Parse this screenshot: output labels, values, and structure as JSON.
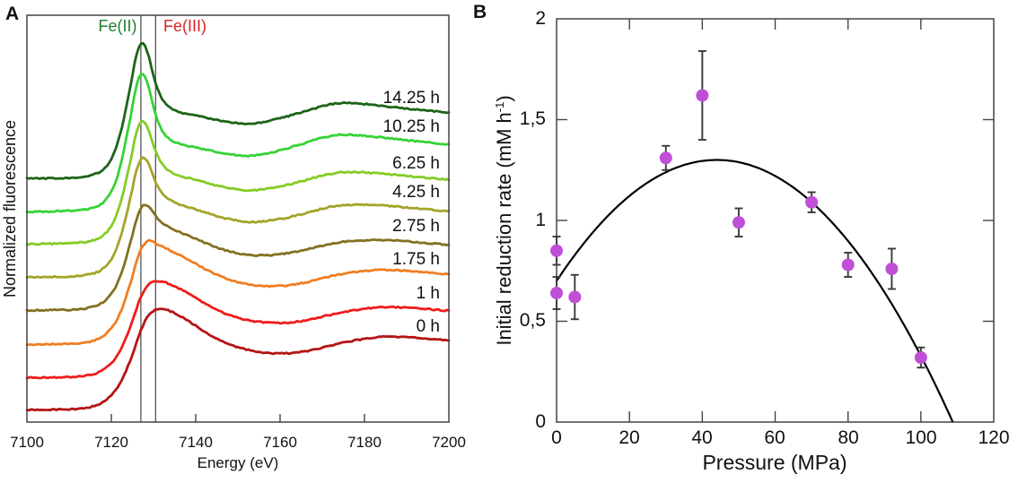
{
  "panels": {
    "a": {
      "label": "A"
    },
    "b": {
      "label": "B"
    }
  },
  "chart_data": [
    {
      "panel": "A",
      "type": "line",
      "xlabel": "Energy (eV)",
      "ylabel": "Normalized fluorescence",
      "xlim": [
        7100,
        7200
      ],
      "ylim": [
        0,
        4.54
      ],
      "grid": false,
      "x_ticks": [
        7100,
        7120,
        7140,
        7160,
        7180,
        7200
      ],
      "reference_lines": [
        {
          "label": "Fe(II)",
          "x": 7127.0,
          "label_color": "#1f7d2c",
          "line_color": "#5f5f5f"
        },
        {
          "label": "Fe(III)",
          "x": 7130.5,
          "label_color": "#d42424",
          "line_color": "#5f5f5f"
        }
      ],
      "series": [
        {
          "label": "14.25 h",
          "color": "#1c6418",
          "reduced_fraction": 1.0,
          "amplitude": 1.52,
          "offset": 2.71
        },
        {
          "label": "10.25 h",
          "color": "#35d335",
          "reduced_fraction": 1.0,
          "amplitude": 1.55,
          "offset": 2.34
        },
        {
          "label": "6.25 h",
          "color": "#85cc26",
          "reduced_fraction": 0.88,
          "amplitude": 1.41,
          "offset": 1.98
        },
        {
          "label": "4.25 h",
          "color": "#a4a42a",
          "reduced_fraction": 0.78,
          "amplitude": 1.39,
          "offset": 1.61
        },
        {
          "label": "2.75 h",
          "color": "#827222",
          "reduced_fraction": 0.55,
          "amplitude": 1.27,
          "offset": 1.24
        },
        {
          "label": "1.75 h",
          "color": "#f07e22",
          "reduced_fraction": 0.3,
          "amplitude": 1.25,
          "offset": 0.86
        },
        {
          "label": "1 h",
          "color": "#ef1c1c",
          "reduced_fraction": 0.1,
          "amplitude": 1.12,
          "offset": 0.49
        },
        {
          "label": "0 h",
          "color": "#b51414",
          "reduced_fraction": 0.0,
          "amplitude": 1.13,
          "offset": 0.13
        }
      ],
      "shape_anchors": {
        "reduced": [
          [
            7100,
            0.005
          ],
          [
            7106,
            0.007
          ],
          [
            7111,
            0.012
          ],
          [
            7115,
            0.028
          ],
          [
            7118,
            0.07
          ],
          [
            7120.5,
            0.18
          ],
          [
            7122.5,
            0.38
          ],
          [
            7124.5,
            0.68
          ],
          [
            7126,
            0.92
          ],
          [
            7127.3,
            1.0
          ],
          [
            7128.6,
            0.93
          ],
          [
            7130,
            0.76
          ],
          [
            7131.5,
            0.62
          ],
          [
            7133.5,
            0.535
          ],
          [
            7136.5,
            0.49
          ],
          [
            7140,
            0.468
          ],
          [
            7145,
            0.435
          ],
          [
            7149,
            0.415
          ],
          [
            7152.5,
            0.405
          ],
          [
            7156,
            0.42
          ],
          [
            7161,
            0.455
          ],
          [
            7166,
            0.5
          ],
          [
            7170.5,
            0.54
          ],
          [
            7174,
            0.558
          ],
          [
            7178,
            0.557
          ],
          [
            7183,
            0.543
          ],
          [
            7189,
            0.522
          ],
          [
            7195,
            0.503
          ],
          [
            7200,
            0.49
          ]
        ],
        "oxidized": [
          [
            7100,
            0.005
          ],
          [
            7107,
            0.009
          ],
          [
            7113,
            0.02
          ],
          [
            7117,
            0.06
          ],
          [
            7120,
            0.15
          ],
          [
            7122.5,
            0.3
          ],
          [
            7125,
            0.55
          ],
          [
            7127,
            0.79
          ],
          [
            7129,
            0.95
          ],
          [
            7131,
            1.0
          ],
          [
            7133,
            0.995
          ],
          [
            7135.5,
            0.95
          ],
          [
            7139,
            0.865
          ],
          [
            7143,
            0.755
          ],
          [
            7147,
            0.668
          ],
          [
            7151,
            0.612
          ],
          [
            7155,
            0.578
          ],
          [
            7159,
            0.563
          ],
          [
            7163,
            0.567
          ],
          [
            7167,
            0.592
          ],
          [
            7171,
            0.63
          ],
          [
            7175,
            0.668
          ],
          [
            7179,
            0.7
          ],
          [
            7183,
            0.722
          ],
          [
            7187,
            0.728
          ],
          [
            7192,
            0.718
          ],
          [
            7196,
            0.705
          ],
          [
            7200,
            0.692
          ]
        ]
      }
    },
    {
      "panel": "B",
      "type": "scatter",
      "xlabel": "Pressure (MPa)",
      "ylabel": "Initial reduction rate (mM h-1)",
      "ylabel_parts": {
        "main": "Initial reduction rate (mM h",
        "sup": "-1",
        "close": ")"
      },
      "xlim": [
        0,
        120
      ],
      "ylim": [
        0,
        2
      ],
      "grid": false,
      "x_ticks": [
        0,
        20,
        40,
        60,
        80,
        100,
        120
      ],
      "y_ticks": [
        {
          "value": 0,
          "label": "0"
        },
        {
          "value": 0.5,
          "label": "0,5"
        },
        {
          "value": 1,
          "label": "1"
        },
        {
          "value": 1.5,
          "label": "1,5"
        },
        {
          "value": 2,
          "label": "2"
        }
      ],
      "marker_color": "#bf4fd6",
      "errorbar_color": "#3a3a3a",
      "fit_color": "#000000",
      "points": [
        {
          "x": 0,
          "y": 0.85,
          "err": 0.07
        },
        {
          "x": 0,
          "y": 0.64,
          "err": 0.08
        },
        {
          "x": 5,
          "y": 0.62,
          "err": 0.11
        },
        {
          "x": 30,
          "y": 1.31,
          "err": 0.06
        },
        {
          "x": 40,
          "y": 1.62,
          "err": 0.22
        },
        {
          "x": 50,
          "y": 0.99,
          "err": 0.07
        },
        {
          "x": 70,
          "y": 1.09,
          "err": 0.05
        },
        {
          "x": 80,
          "y": 0.78,
          "err": 0.06
        },
        {
          "x": 92,
          "y": 0.76,
          "err": 0.1
        },
        {
          "x": 100,
          "y": 0.32,
          "err": 0.05
        }
      ],
      "fit": {
        "type": "parabola",
        "vertex_x": 44,
        "vertex_y": 1.3,
        "a": -0.00031
      }
    }
  ]
}
